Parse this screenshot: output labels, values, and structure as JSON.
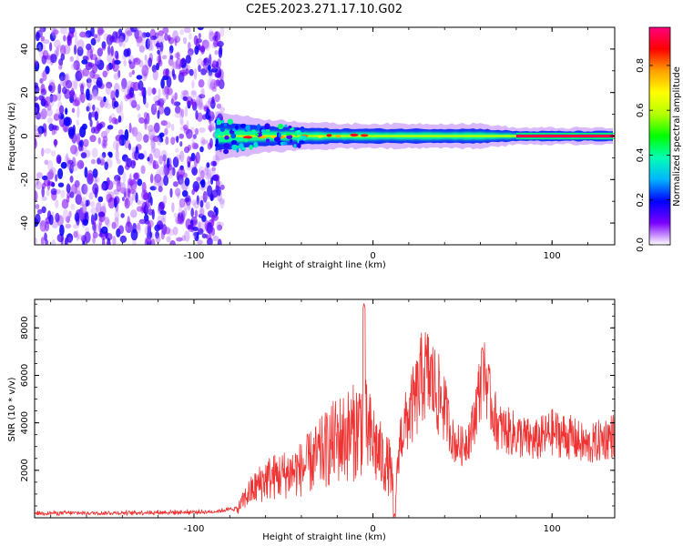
{
  "title": "C2E5.2023.271.17.10.G02",
  "chart_data": [
    {
      "type": "heatmap",
      "xlabel": "Height of straight line (km)",
      "ylabel": "Frequency (Hz)",
      "xlim": [
        -189,
        135
      ],
      "ylim": [
        -50,
        50
      ],
      "xticks": [
        -100,
        0,
        100
      ],
      "yticks": [
        -40,
        -20,
        0,
        20,
        40
      ],
      "noise_region": {
        "x": [
          -189,
          -84
        ],
        "y": [
          -50,
          50
        ]
      },
      "signal_band": {
        "x_start": -88,
        "x_end": 135,
        "center_freq": 0,
        "halfwidth_points": [
          [
            -88,
            6
          ],
          [
            -60,
            4
          ],
          [
            -20,
            3
          ],
          [
            20,
            3
          ],
          [
            60,
            3
          ],
          [
            80,
            2
          ],
          [
            135,
            2
          ]
        ]
      },
      "colorbar": {
        "label": "Normalized spectral amplitude",
        "range": [
          0,
          0.97
        ],
        "ticks": [
          0.0,
          0.2,
          0.4,
          0.6,
          0.8
        ],
        "tick_labels": [
          "0.0",
          "0.2",
          "0.4",
          "0.6",
          "0.8"
        ],
        "colors": [
          "#ffffff",
          "#7b00ff",
          "#0000ff",
          "#00b4ff",
          "#00ffb4",
          "#00ff00",
          "#b4ff00",
          "#ffff00",
          "#ffa000",
          "#ff0000",
          "#ff0080"
        ]
      }
    },
    {
      "type": "line",
      "xlabel": "Height of straight line (km)",
      "ylabel": "SNR (10 * v/v)",
      "xlim": [
        -189,
        135
      ],
      "ylim": [
        0,
        9200
      ],
      "xticks": [
        -100,
        0,
        100
      ],
      "yticks": [
        2000,
        4000,
        6000,
        8000
      ],
      "color": "#ee3333",
      "envelope": {
        "x": [
          -189,
          -150,
          -90,
          -76,
          -70,
          -60,
          -50,
          -40,
          -30,
          -25,
          -20,
          -15,
          -10,
          -6,
          -3,
          0,
          5,
          10,
          12,
          15,
          20,
          25,
          28,
          32,
          36,
          40,
          45,
          50,
          55,
          60,
          62,
          65,
          70,
          80,
          90,
          100,
          110,
          120,
          128,
          135
        ],
        "y": [
          200,
          200,
          250,
          400,
          1200,
          2000,
          2200,
          2500,
          3200,
          3600,
          4000,
          4200,
          4400,
          5000,
          4300,
          3900,
          3000,
          2500,
          400,
          3300,
          4300,
          5200,
          6100,
          5900,
          5200,
          4700,
          3200,
          3000,
          3600,
          5600,
          6500,
          5000,
          3800,
          3500,
          3200,
          3600,
          3400,
          3000,
          3300,
          3500
        ]
      },
      "peaks": [
        {
          "x": -5,
          "y": 9050
        },
        {
          "x": 12,
          "y": 200
        },
        {
          "x": 61,
          "y": 7200
        }
      ]
    }
  ]
}
